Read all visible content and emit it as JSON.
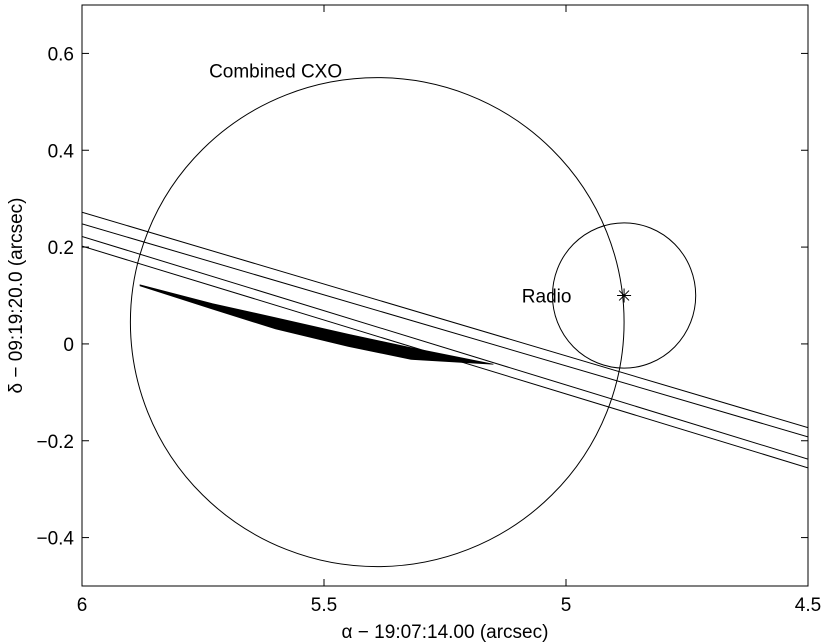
{
  "chart_data": {
    "type": "line",
    "xlabel": "α − 19:07:14.00 (arcsec)",
    "ylabel": "δ − 09:19:20.0 (arcsec)",
    "xlim": [
      6,
      4.5
    ],
    "ylim": [
      -0.5,
      0.7
    ],
    "x_reversed": true,
    "grid": false,
    "x_ticks": [
      {
        "value": 6,
        "label": "6"
      },
      {
        "value": 5.5,
        "label": "5.5"
      },
      {
        "value": 5,
        "label": "5"
      },
      {
        "value": 4.5,
        "label": "4.5"
      }
    ],
    "y_ticks": [
      {
        "value": -0.4,
        "label": "−0.4"
      },
      {
        "value": -0.2,
        "label": "−0.2"
      },
      {
        "value": 0,
        "label": "0"
      },
      {
        "value": 0.2,
        "label": "0.2"
      },
      {
        "value": 0.4,
        "label": "0.4"
      },
      {
        "value": 0.6,
        "label": "0.6"
      }
    ],
    "ellipses": [
      {
        "label": "Combined CXO",
        "cx": 5.39,
        "cy": 0.045,
        "rx": 0.51,
        "ry": 0.505
      },
      {
        "label": "Radio",
        "cx": 4.88,
        "cy": 0.1,
        "rx": 0.148,
        "ry": 0.15
      }
    ],
    "lines": [
      {
        "x": [
          6,
          4.5
        ],
        "y": [
          0.272,
          -0.173
        ]
      },
      {
        "x": [
          6,
          4.5
        ],
        "y": [
          0.248,
          -0.192
        ]
      },
      {
        "x": [
          6,
          4.5
        ],
        "y": [
          0.222,
          -0.238
        ]
      },
      {
        "x": [
          6,
          4.5
        ],
        "y": [
          0.202,
          -0.256
        ]
      }
    ],
    "shaded_band": {
      "x": [
        5.88,
        5.73,
        5.6,
        5.45,
        5.32,
        5.15
      ],
      "y_upper": [
        0.122,
        0.083,
        0.054,
        0.02,
        -0.008,
        -0.042
      ],
      "y_lower": [
        0.12,
        0.072,
        0.031,
        -0.005,
        -0.032,
        -0.042
      ]
    },
    "markers": [
      {
        "symbol": "asterisk",
        "x": 4.88,
        "y": 0.1
      }
    ],
    "annotations": [
      {
        "text": "Combined CXO",
        "x": 5.6,
        "y": 0.565
      },
      {
        "text": "Radio",
        "x": 5.04,
        "y": 0.1
      }
    ]
  }
}
